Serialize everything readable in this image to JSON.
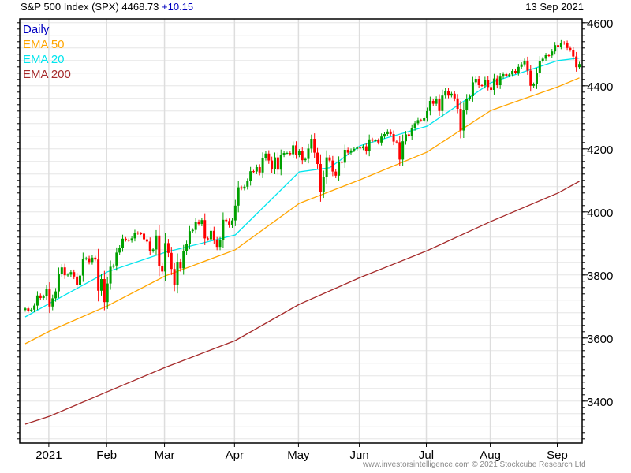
{
  "header": {
    "title": "S&P 500 Index (SPX) 4468.73",
    "change": "+10.15",
    "date": "13 Sep 2021"
  },
  "legend": [
    {
      "label": "Daily",
      "color": "#0000c0"
    },
    {
      "label": "EMA 50",
      "color": "#ffa500"
    },
    {
      "label": "EMA 20",
      "color": "#00e5ee"
    },
    {
      "label": "EMA 200",
      "color": "#a52a2a"
    }
  ],
  "footer": "www.investorsintelligence.com  © 2021 Stockcube Research Ltd",
  "chart_data": {
    "type": "candlestick",
    "ylim": [
      3267,
      4612
    ],
    "yticks": [
      3400,
      3600,
      3800,
      4000,
      4200,
      4400,
      4600
    ],
    "grid": true,
    "up_color": "#00a000",
    "down_color": "#ff0000",
    "month_ticks": [
      {
        "label": "2021",
        "index": 8
      },
      {
        "label": "Feb",
        "index": 27
      },
      {
        "label": "Mar",
        "index": 46
      },
      {
        "label": "Apr",
        "index": 69
      },
      {
        "label": "May",
        "index": 90
      },
      {
        "label": "Jun",
        "index": 110
      },
      {
        "label": "Jul",
        "index": 132
      },
      {
        "label": "Aug",
        "index": 153
      },
      {
        "label": "Sep",
        "index": 175
      }
    ],
    "close": [
      3694,
      3687,
      3690,
      3703,
      3735,
      3727,
      3732,
      3756,
      3700,
      3726,
      3748,
      3803,
      3824,
      3799,
      3801,
      3809,
      3795,
      3768,
      3798,
      3851,
      3853,
      3841,
      3855,
      3849,
      3750,
      3787,
      3714,
      3773,
      3826,
      3830,
      3871,
      3886,
      3915,
      3911,
      3909,
      3916,
      3934,
      3932,
      3931,
      3913,
      3906,
      3876,
      3881,
      3925,
      3829,
      3811,
      3901,
      3870,
      3819,
      3768,
      3842,
      3821,
      3875,
      3898,
      3939,
      3943,
      3969,
      3962,
      3974,
      3916,
      3913,
      3940,
      3910,
      3889,
      3910,
      3975,
      3971,
      3958,
      3973,
      4020,
      4078,
      4074,
      4080,
      4097,
      4129,
      4128,
      4142,
      4125,
      4171,
      4185,
      4163,
      4135,
      4173,
      4134,
      4180,
      4187,
      4187,
      4183,
      4211,
      4181,
      4192,
      4164,
      4168,
      4201,
      4232,
      4188,
      4152,
      4063,
      4112,
      4173,
      4163,
      4128,
      4115,
      4159,
      4156,
      4197,
      4188,
      4195,
      4200,
      4204,
      4202,
      4208,
      4192,
      4230,
      4226,
      4227,
      4220,
      4239,
      4247,
      4255,
      4247,
      4223,
      4221,
      4166,
      4224,
      4246,
      4241,
      4266,
      4281,
      4291,
      4290,
      4297,
      4320,
      4352,
      4343,
      4358,
      4320,
      4369,
      4384,
      4369,
      4375,
      4360,
      4327,
      4258,
      4323,
      4359,
      4367,
      4411,
      4422,
      4402,
      4401,
      4419,
      4396,
      4387,
      4423,
      4402,
      4429,
      4437,
      4432,
      4436,
      4447,
      4442,
      4460,
      4468,
      4479,
      4448,
      4400,
      4405,
      4442,
      4479,
      4486,
      4497,
      4496,
      4509,
      4529,
      4524,
      4537,
      4535,
      4520,
      4514,
      4493,
      4459,
      4469
    ],
    "ema_series": [
      {
        "name": "EMA 20",
        "color": "#00e5ee",
        "index": [
          0,
          8,
          27,
          46,
          69,
          90,
          100,
          110,
          132,
          153,
          175,
          182
        ],
        "values": [
          3667,
          3710,
          3810,
          3872,
          3927,
          4127,
          4140,
          4210,
          4272,
          4410,
          4480,
          4488
        ]
      },
      {
        "name": "EMA 50",
        "color": "#ffa500",
        "index": [
          0,
          8,
          27,
          46,
          69,
          90,
          110,
          132,
          153,
          175,
          182
        ],
        "values": [
          3582,
          3622,
          3702,
          3797,
          3880,
          4027,
          4102,
          4190,
          4322,
          4397,
          4425
        ]
      },
      {
        "name": "EMA 200",
        "color": "#a52a2a",
        "index": [
          0,
          8,
          27,
          46,
          69,
          90,
          110,
          132,
          153,
          175,
          182
        ],
        "values": [
          3327,
          3352,
          3430,
          3507,
          3592,
          3707,
          3792,
          3877,
          3970,
          4060,
          4097
        ]
      }
    ]
  }
}
